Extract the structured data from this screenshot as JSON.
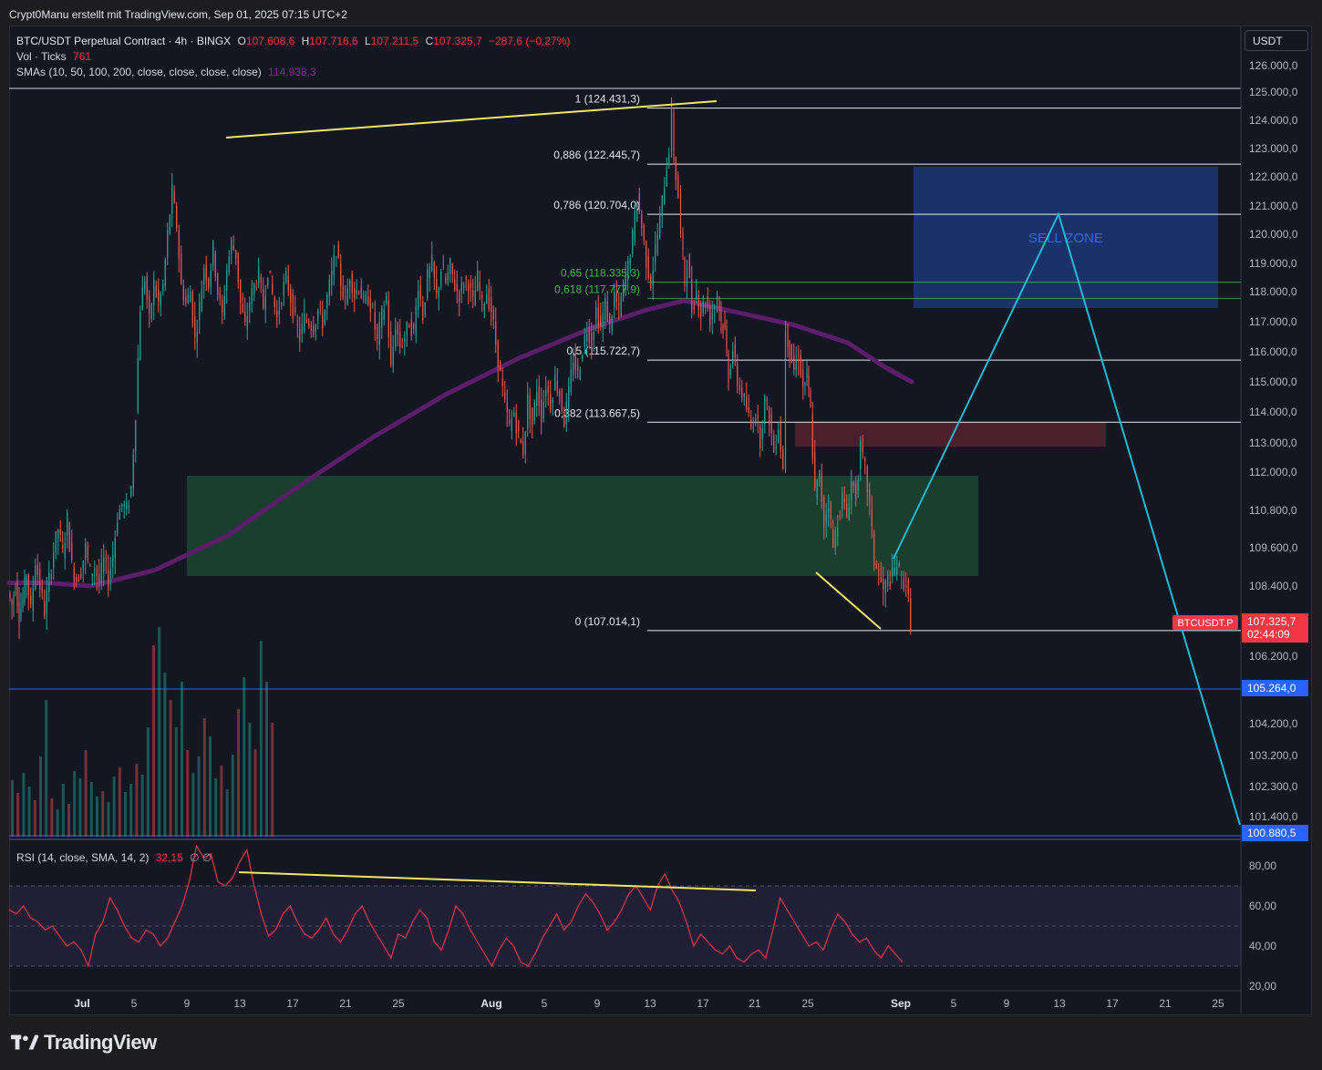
{
  "header": {
    "credit": "Crypt0Manu erstellt mit TradingView.com, Sep 01, 2025 07:15 UTC+2"
  },
  "legend": {
    "symbol": "BTC/USDT Perpetual Contract · 4h · BINGX",
    "o_label": "O",
    "o": "107.608,6",
    "h_label": "H",
    "h": "107.716,6",
    "l_label": "L",
    "l": "107.211,5",
    "c_label": "C",
    "c": "107.325,7",
    "change": "−287,6 (−0,27%)",
    "vol_label": "Vol · Ticks",
    "vol": "761",
    "sma_label": "SMAs (10, 50, 100, 200, close, close, close, close)",
    "sma": "114.938,3",
    "rsi_label": "RSI (14, close, SMA, 14, 2)",
    "rsi": "32,15",
    "rsi_extra": "∅  ∅"
  },
  "currency_button": "USDT",
  "branding": {
    "name": "TradingView"
  },
  "colors": {
    "up": "#26a69a",
    "down": "#ef5350",
    "sma": "#5c1d6b",
    "fib": "#ffffff",
    "fib_green": "#4caf50",
    "trend": "#f5e663",
    "projection": "#22b8d6",
    "sell_zone": "#1e3a7a",
    "support_zone": "#1e4d33",
    "resistance_zone": "#5a2230",
    "rsi_line": "#f23645",
    "price_badge": "#f23645",
    "level_badge": "#2962ff"
  },
  "chart_data": {
    "type": "candlestick",
    "timeframe": "4h",
    "x_ticks": [
      "Jul",
      "5",
      "9",
      "13",
      "17",
      "21",
      "25",
      "Aug",
      "5",
      "9",
      "13",
      "17",
      "21",
      "25",
      "Sep",
      "5",
      "9",
      "13",
      "17",
      "21",
      "25"
    ],
    "y_ticks": [
      "126.000,0",
      "125.000,0",
      "124.000,0",
      "123.000,0",
      "122.000,0",
      "121.000,0",
      "120.000,0",
      "119.000,0",
      "118.000,0",
      "117.000,0",
      "116.000,0",
      "115.000,0",
      "114.000,0",
      "113.000,0",
      "112.000,0",
      "110.800,0",
      "109.600,0",
      "108.400,0",
      "106.200,0",
      "104.200,0",
      "103.200,0",
      "102.300,0",
      "101.400,0"
    ],
    "ohlc_path": [
      [
        108.2,
        0
      ],
      [
        107.8,
        4
      ],
      [
        108.5,
        8
      ],
      [
        107.5,
        12
      ],
      [
        108.0,
        16
      ],
      [
        108.8,
        20
      ],
      [
        107.6,
        25
      ],
      [
        109.2,
        30
      ],
      [
        108.4,
        35
      ],
      [
        107.6,
        40
      ],
      [
        108.6,
        45
      ],
      [
        109.5,
        50
      ],
      [
        110.2,
        55
      ],
      [
        109.4,
        60
      ],
      [
        110.5,
        65
      ],
      [
        109.0,
        70
      ],
      [
        108.6,
        75
      ],
      [
        108.9,
        80
      ],
      [
        109.6,
        85
      ],
      [
        108.8,
        90
      ],
      [
        109.0,
        95
      ],
      [
        108.5,
        100
      ],
      [
        109.2,
        105
      ],
      [
        108.6,
        110
      ],
      [
        109.4,
        115
      ],
      [
        110.6,
        120
      ],
      [
        111.0,
        125
      ],
      [
        110.8,
        130
      ],
      [
        111.5,
        135
      ],
      [
        114.0,
        140
      ],
      [
        117.5,
        145
      ],
      [
        118.5,
        150
      ],
      [
        117.0,
        155
      ],
      [
        118.3,
        160
      ],
      [
        117.6,
        165
      ],
      [
        118.2,
        170
      ],
      [
        120.0,
        175
      ],
      [
        121.5,
        180
      ],
      [
        120.3,
        185
      ],
      [
        118.2,
        190
      ],
      [
        117.6,
        195
      ],
      [
        118.0,
        200
      ],
      [
        116.4,
        205
      ],
      [
        117.5,
        210
      ],
      [
        118.9,
        215
      ],
      [
        118.3,
        220
      ],
      [
        119.5,
        225
      ],
      [
        118.0,
        230
      ],
      [
        117.2,
        235
      ],
      [
        118.8,
        240
      ],
      [
        119.7,
        245
      ],
      [
        119.3,
        250
      ],
      [
        117.6,
        255
      ],
      [
        116.8,
        260
      ],
      [
        117.7,
        265
      ],
      [
        118.2,
        270
      ],
      [
        118.6,
        275
      ],
      [
        117.5,
        280
      ],
      [
        118.8,
        285
      ],
      [
        117.9,
        290
      ],
      [
        117.1,
        295
      ],
      [
        117.9,
        300
      ],
      [
        118.5,
        305
      ],
      [
        117.8,
        310
      ],
      [
        117.0,
        315
      ],
      [
        116.5,
        320
      ],
      [
        117.1,
        325
      ],
      [
        117.0,
        330
      ],
      [
        116.8,
        335
      ],
      [
        117.4,
        340
      ],
      [
        117.0,
        345
      ],
      [
        117.8,
        350
      ],
      [
        118.6,
        355
      ],
      [
        119.5,
        360
      ],
      [
        118.3,
        365
      ],
      [
        117.6,
        370
      ],
      [
        118.6,
        375
      ],
      [
        117.9,
        380
      ],
      [
        118.2,
        385
      ],
      [
        117.6,
        390
      ],
      [
        117.8,
        395
      ],
      [
        117.3,
        400
      ],
      [
        116.3,
        405
      ],
      [
        117.2,
        410
      ],
      [
        117.8,
        415
      ],
      [
        115.4,
        420
      ],
      [
        116.9,
        425
      ],
      [
        116.2,
        430
      ],
      [
        116.5,
        435
      ],
      [
        117.0,
        440
      ],
      [
        116.6,
        445
      ],
      [
        118.3,
        450
      ],
      [
        117.2,
        455
      ],
      [
        118.5,
        460
      ],
      [
        119.0,
        465
      ],
      [
        117.8,
        470
      ],
      [
        118.8,
        475
      ],
      [
        118.3,
        480
      ],
      [
        118.9,
        485
      ],
      [
        118.2,
        490
      ],
      [
        117.9,
        495
      ],
      [
        118.4,
        500
      ],
      [
        118.3,
        505
      ],
      [
        117.6,
        510
      ],
      [
        118.5,
        515
      ],
      [
        117.5,
        520
      ],
      [
        118.0,
        525
      ],
      [
        117.4,
        530
      ],
      [
        116.3,
        535
      ],
      [
        115.2,
        540
      ],
      [
        114.2,
        545
      ],
      [
        113.5,
        550
      ],
      [
        114.0,
        555
      ],
      [
        113.2,
        560
      ],
      [
        112.7,
        565
      ],
      [
        114.4,
        570
      ],
      [
        113.6,
        575
      ],
      [
        114.8,
        580
      ],
      [
        113.9,
        585
      ],
      [
        114.9,
        590
      ],
      [
        114.3,
        595
      ],
      [
        115.1,
        600
      ],
      [
        114.6,
        605
      ],
      [
        113.7,
        610
      ],
      [
        114.6,
        615
      ],
      [
        115.8,
        620
      ],
      [
        115.2,
        625
      ],
      [
        116.1,
        630
      ],
      [
        116.8,
        635
      ],
      [
        116.4,
        640
      ],
      [
        117.4,
        645
      ],
      [
        116.8,
        650
      ],
      [
        117.6,
        655
      ],
      [
        116.8,
        660
      ],
      [
        117.9,
        665
      ],
      [
        117.3,
        670
      ],
      [
        118.2,
        675
      ],
      [
        118.9,
        680
      ],
      [
        119.9,
        685
      ],
      [
        121.3,
        690
      ],
      [
        120.3,
        695
      ],
      [
        119.1,
        700
      ],
      [
        118.3,
        705
      ],
      [
        119.5,
        710
      ],
      [
        120.5,
        715
      ],
      [
        121.8,
        720
      ],
      [
        123.0,
        725
      ],
      [
        124.2,
        728
      ],
      [
        122.7,
        730
      ],
      [
        121.3,
        735
      ],
      [
        120.1,
        738
      ],
      [
        118.3,
        742
      ],
      [
        119.2,
        745
      ],
      [
        117.4,
        750
      ],
      [
        118.0,
        755
      ],
      [
        117.3,
        760
      ],
      [
        117.8,
        765
      ],
      [
        117.1,
        770
      ],
      [
        117.6,
        775
      ],
      [
        117.9,
        778
      ],
      [
        117.0,
        782
      ],
      [
        116.7,
        786
      ],
      [
        115.2,
        790
      ],
      [
        116.1,
        795
      ],
      [
        115.0,
        800
      ],
      [
        114.6,
        805
      ],
      [
        114.1,
        810
      ],
      [
        113.5,
        815
      ],
      [
        114.0,
        820
      ],
      [
        113.1,
        825
      ],
      [
        114.4,
        830
      ],
      [
        113.8,
        835
      ],
      [
        112.7,
        840
      ],
      [
        113.6,
        845
      ],
      [
        112.1,
        850
      ],
      [
        116.8,
        853
      ],
      [
        116.1,
        857
      ],
      [
        115.4,
        862
      ],
      [
        115.9,
        867
      ],
      [
        114.8,
        872
      ],
      [
        115.2,
        876
      ],
      [
        114.0,
        880
      ],
      [
        111.3,
        885
      ],
      [
        111.9,
        890
      ],
      [
        110.4,
        895
      ],
      [
        111.1,
        900
      ],
      [
        109.6,
        905
      ],
      [
        110.5,
        910
      ],
      [
        111.2,
        915
      ],
      [
        110.6,
        920
      ],
      [
        111.7,
        925
      ],
      [
        111.3,
        930
      ],
      [
        112.8,
        935
      ],
      [
        112.1,
        940
      ],
      [
        110.9,
        945
      ],
      [
        109.2,
        950
      ],
      [
        108.8,
        955
      ],
      [
        108.2,
        960
      ],
      [
        108.6,
        965
      ],
      [
        108.7,
        970
      ],
      [
        109.1,
        975
      ],
      [
        108.6,
        980
      ],
      [
        108.5,
        985
      ],
      [
        107.3,
        990
      ]
    ],
    "volume_heights": [
      62,
      48,
      70,
      55,
      40,
      88,
      150,
      42,
      30,
      58,
      36,
      72,
      64,
      95,
      60,
      44,
      50,
      38,
      66,
      76,
      49,
      58,
      80,
      68,
      120,
      210,
      230,
      180,
      150,
      120,
      170,
      95,
      70,
      88,
      130,
      110,
      64,
      78,
      52,
      90,
      140,
      175,
      125,
      96,
      215,
      170,
      125
    ],
    "sma_path": [
      [
        108.5,
        0
      ],
      [
        108.5,
        40
      ],
      [
        108.4,
        90
      ],
      [
        108.9,
        160
      ],
      [
        110.0,
        240
      ],
      [
        111.6,
        320
      ],
      [
        113.2,
        400
      ],
      [
        114.6,
        480
      ],
      [
        115.8,
        560
      ],
      [
        116.8,
        640
      ],
      [
        117.4,
        700
      ],
      [
        117.7,
        740
      ],
      [
        117.3,
        800
      ],
      [
        116.9,
        860
      ],
      [
        116.3,
        920
      ],
      [
        115.5,
        960
      ],
      [
        115.0,
        990
      ]
    ],
    "fib_levels": [
      {
        "ratio": "1",
        "price": "124.431,3"
      },
      {
        "ratio": "0,886",
        "price": "122.445,7"
      },
      {
        "ratio": "0,786",
        "price": "120.704,0"
      },
      {
        "ratio": "0,65",
        "price": "118.335,3"
      },
      {
        "ratio": "0,618",
        "price": "117.777,9"
      },
      {
        "ratio": "0,5",
        "price": "115.722,7"
      },
      {
        "ratio": "0,382",
        "price": "113.667,5"
      },
      {
        "ratio": "0",
        "price": "107.014,1"
      }
    ],
    "horizontal_level": "105.264,0",
    "target_level": "100.880,5",
    "current_price": "107.325,7",
    "current_symbol": "BTCUSDT.P",
    "countdown": "02:44:09",
    "sell_zone_label": "SELL ZONE",
    "rsi": {
      "y_ticks": [
        "80,00",
        "60,00",
        "40,00",
        "20,00"
      ],
      "values": [
        58,
        56,
        60,
        54,
        52,
        48,
        50,
        45,
        40,
        42,
        38,
        30,
        46,
        52,
        64,
        58,
        50,
        44,
        42,
        48,
        46,
        40,
        44,
        52,
        60,
        72,
        90,
        84,
        86,
        72,
        70,
        74,
        82,
        88,
        70,
        56,
        45,
        48,
        56,
        60,
        52,
        46,
        44,
        48,
        54,
        46,
        42,
        48,
        56,
        60,
        52,
        46,
        40,
        34,
        46,
        44,
        52,
        58,
        54,
        42,
        38,
        48,
        60,
        56,
        48,
        42,
        36,
        30,
        38,
        44,
        40,
        32,
        30,
        36,
        44,
        50,
        56,
        48,
        52,
        60,
        66,
        62,
        56,
        48,
        52,
        58,
        66,
        70,
        64,
        58,
        70,
        76,
        68,
        62,
        52,
        40,
        46,
        42,
        38,
        36,
        40,
        34,
        32,
        36,
        38,
        34,
        48,
        64,
        58,
        52,
        46,
        40,
        42,
        38,
        48,
        56,
        52,
        46,
        42,
        44,
        38,
        34,
        40,
        36,
        32
      ],
      "divergence_labels": []
    }
  }
}
